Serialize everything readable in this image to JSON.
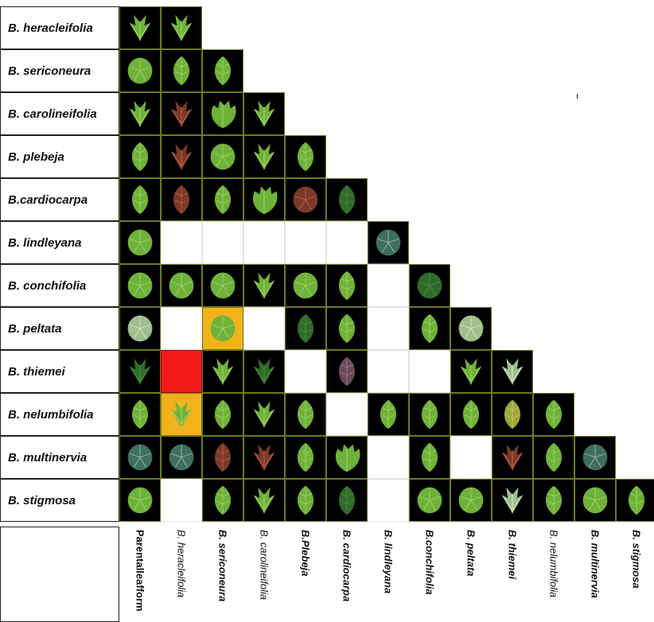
{
  "rows": [
    "B. heracleifolia",
    "B. sericoneura",
    "B. carolineifolia",
    "B. plebeja",
    "B.cardiocarpa",
    "B. lindleyana",
    "B. conchifolia",
    "B. peltata",
    "B. thiemei",
    "B. nelumbifolia",
    "B. multinervia",
    "B. stigmosa"
  ],
  "columns": [
    {
      "label": "Parentalleafform",
      "style": "first"
    },
    {
      "label": "B. heracleifolia",
      "style": "reg"
    },
    {
      "label": "B. sericoneura",
      "style": "bold"
    },
    {
      "label": "B. carolineifolia",
      "style": "reg"
    },
    {
      "label": "B.Plebeja",
      "style": "bold"
    },
    {
      "label": "B. cardiocarpa",
      "style": "bold"
    },
    {
      "label": "B. lindleyana",
      "style": "bold"
    },
    {
      "label": "B.conchifolia",
      "style": "bold"
    },
    {
      "label": "B. peltata",
      "style": "bold"
    },
    {
      "label": "B. thiemei",
      "style": "bold"
    },
    {
      "label": "B. nelumbifolia",
      "style": "reg"
    },
    {
      "label": "B. multinervia",
      "style": "bold"
    },
    {
      "label": "B. stigmosa",
      "style": "bold"
    }
  ],
  "cells": [
    [
      "palmate",
      "palmate"
    ],
    [
      "round",
      "ovate",
      "ovate"
    ],
    [
      "palmate",
      "palmate-red",
      "lobed",
      "palmate"
    ],
    [
      "ovate",
      "palmate-red",
      "round",
      "palmate",
      "ovate"
    ],
    [
      "ovate",
      "ovate-red",
      "ovate",
      "lobed",
      "round-red",
      "ovate-dark"
    ],
    [
      "peltate",
      "blank",
      "blank",
      "blank",
      "blank",
      "blank",
      "round-pattern"
    ],
    [
      "round",
      "round",
      "round",
      "palmate",
      "round",
      "ovate",
      "blank",
      "round-dark"
    ],
    [
      "peltate-pale",
      "blank",
      "round-gold",
      "blank",
      "ovate-dark",
      "ovate",
      "blank",
      "ovate",
      "round-pale"
    ],
    [
      "palmate-dark",
      "red",
      "palmate",
      "palmate-dark",
      "blank",
      "ovate-purple",
      "blank",
      "blank",
      "palmate",
      "palmate-pale"
    ],
    [
      "ovate",
      "star-gold",
      "ovate",
      "palmate",
      "ovate",
      "blank",
      "ovate",
      "ovate",
      "ovate",
      "ovate-yellow",
      "ovate"
    ],
    [
      "round-pattern",
      "round-pattern",
      "ovate-red",
      "palmate-red",
      "ovate",
      "lobed",
      "blank",
      "ovate",
      "blank",
      "palmate-red",
      "ovate",
      "round-pattern"
    ],
    [
      "round",
      "blank",
      "ovate",
      "palmate",
      "ovate",
      "ovate-dark",
      "blank",
      "round",
      "round",
      "palmate-pale",
      "ovate",
      "round",
      "ovate"
    ]
  ],
  "colors": {
    "cell_background": "#000000",
    "leaf_green": "#6fb23a",
    "leaf_light": "#a8d66a",
    "leaf_dark": "#2f6b2a",
    "red_cell": "#f21a1a",
    "gold_cell": "#f2b21a",
    "cell_border": "#6f7a24"
  }
}
